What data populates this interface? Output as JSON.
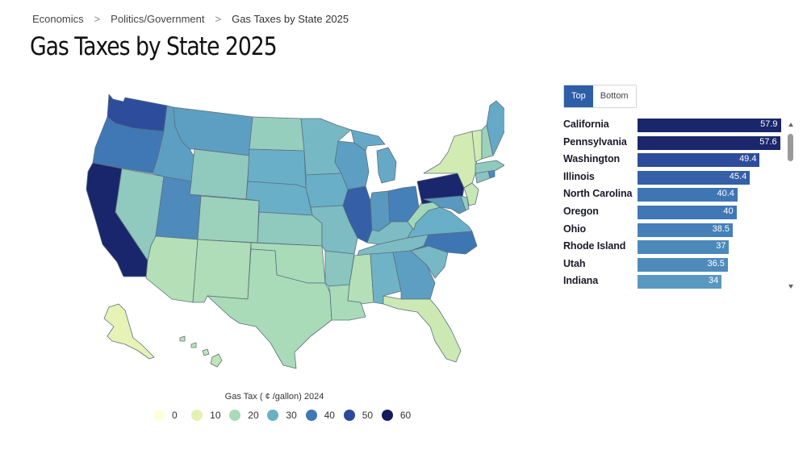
{
  "breadcrumb": {
    "items": [
      "Economics",
      "Politics/Government",
      "Gas Taxes by State 2025"
    ],
    "separator": ">"
  },
  "title": "Gas Taxes by State 2025",
  "toggle": {
    "top_label": "Top",
    "bottom_label": "Bottom",
    "active": "Top"
  },
  "colors": {
    "scale": [
      "#ffffd9",
      "#e4f2b1",
      "#a9dbb8",
      "#6aafc8",
      "#3f78b5",
      "#2c4a9a",
      "#141c5e"
    ],
    "map_border": "#5b6f80",
    "toggle_active": "#2d5ea8"
  },
  "chart_data": {
    "type": "choropleth",
    "title": "Gas Taxes by State 2025",
    "legend_title": "Gas Tax ( ¢ /gallon) 2024",
    "legend_ticks": [
      0,
      10,
      20,
      30,
      40,
      50,
      60
    ],
    "ranking": {
      "type": "bar",
      "categories": [
        "California",
        "Pennsylvania",
        "Washington",
        "Illinois",
        "North Carolina",
        "Oregon",
        "Ohio",
        "Rhode Island",
        "Utah",
        "Indiana"
      ],
      "values": [
        57.9,
        57.6,
        49.4,
        45.4,
        40.4,
        40,
        38.5,
        37,
        36.5,
        34
      ],
      "value_labels": [
        "57.9",
        "57.6",
        "49.4",
        "45.4",
        "40.4",
        "40",
        "38.5",
        "37",
        "36.5",
        "34"
      ],
      "xlim": [
        0,
        60
      ]
    },
    "state_values": {
      "CA": 57.9,
      "PA": 57.6,
      "WA": 49.4,
      "IL": 45.4,
      "NC": 40.4,
      "OR": 40,
      "OH": 38.5,
      "RI": 37,
      "UT": 36.5,
      "IN": 34,
      "MI": 31,
      "GA": 33,
      "MD": 34,
      "NE": 30,
      "ID": 33,
      "MT": 33,
      "WI": 33,
      "KY": 27,
      "VA": 30,
      "NJ": 15,
      "NY": 13,
      "FL": 14,
      "TX": 20,
      "NM": 19,
      "AZ": 18,
      "NV": 24,
      "CO": 22,
      "WY": 24,
      "ND": 23,
      "SD": 30,
      "KS": 24,
      "OK": 20,
      "MN": 28,
      "IA": 30,
      "MO": 27,
      "AR": 25,
      "LA": 20,
      "MS": 18,
      "AL": 29,
      "TN": 27,
      "SC": 28,
      "WV": 21,
      "ME": 31,
      "NH": 22,
      "VT": 13,
      "MA": 24,
      "CT": 25,
      "DE": 23,
      "AK": 9,
      "HI": 16
    }
  }
}
